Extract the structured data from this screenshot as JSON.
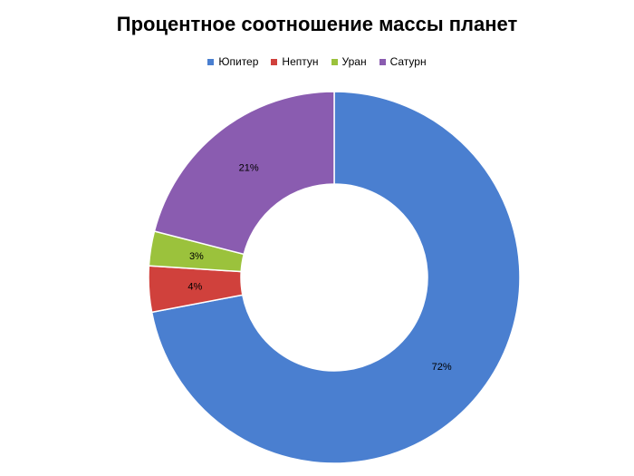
{
  "chart_data": {
    "type": "pie",
    "donut": true,
    "title": "Процентное соотношение массы планет",
    "legend_position": "top",
    "slices": [
      {
        "name": "Юпитер",
        "value": 72,
        "label": "72%",
        "color": "#4a7fd0"
      },
      {
        "name": "Нептун",
        "value": 4,
        "label": "4%",
        "color": "#d0413c"
      },
      {
        "name": "Уран",
        "value": 3,
        "label": "3%",
        "color": "#9bc23c"
      },
      {
        "name": "Сатурн",
        "value": 21,
        "label": "21%",
        "color": "#8a5cb0"
      }
    ]
  }
}
